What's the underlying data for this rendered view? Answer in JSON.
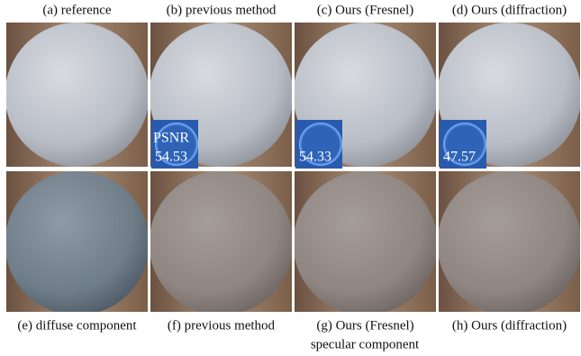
{
  "panels": [
    {
      "caption": "(a) reference"
    },
    {
      "caption": "(b) previous method"
    },
    {
      "caption": "(c) Ours (Fresnel)"
    },
    {
      "caption": "(d) Ours (diffraction)"
    },
    {
      "caption": "(e) diffuse component"
    },
    {
      "caption": "(f) previous method"
    },
    {
      "caption": "(g) Ours (Fresnel)"
    },
    {
      "caption": "(h) Ours (diffraction)"
    }
  ],
  "subcaption": "specular component",
  "insets": [
    {
      "label": "PSNR",
      "value": "54.53"
    },
    {
      "value": "54.33"
    },
    {
      "value": "47.57"
    }
  ]
}
